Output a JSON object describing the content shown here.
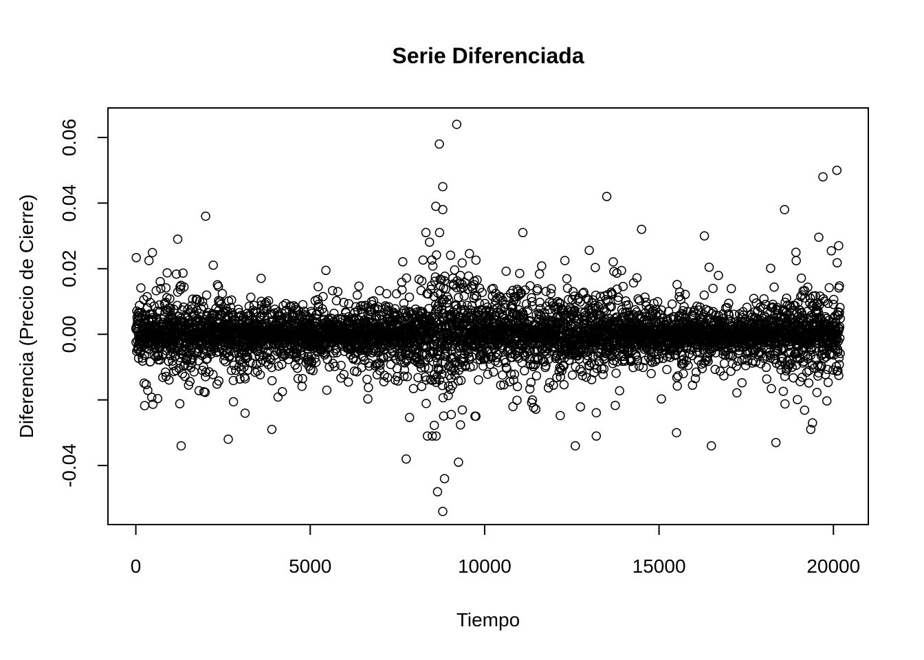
{
  "chart_data": {
    "type": "scatter",
    "title": "Serie Diferenciada",
    "xlabel": "Tiempo",
    "ylabel": "Diferencia (Precio de Cierre)",
    "xlim": [
      -800,
      21000
    ],
    "ylim": [
      -0.058,
      0.069
    ],
    "x_ticks": [
      0,
      5000,
      10000,
      15000,
      20000
    ],
    "x_tick_labels": [
      "0",
      "5000",
      "10000",
      "15000",
      "20000"
    ],
    "y_ticks": [
      -0.04,
      -0.02,
      0.0,
      0.02,
      0.04,
      0.06
    ],
    "y_tick_labels": [
      "-0.04",
      "",
      "0.00",
      "0.02",
      "0.04",
      "0.06"
    ],
    "n_points_approx": 20200,
    "grid": false,
    "legend": "none",
    "marker": "open-circle",
    "color": "#000000",
    "volatility_envelope": [
      {
        "x": 0,
        "sd": 0.0065
      },
      {
        "x": 1000,
        "sd": 0.0062
      },
      {
        "x": 2000,
        "sd": 0.0052
      },
      {
        "x": 3000,
        "sd": 0.0049
      },
      {
        "x": 4000,
        "sd": 0.0046
      },
      {
        "x": 5000,
        "sd": 0.0042
      },
      {
        "x": 6000,
        "sd": 0.0037
      },
      {
        "x": 7000,
        "sd": 0.005
      },
      {
        "x": 8000,
        "sd": 0.0062
      },
      {
        "x": 8700,
        "sd": 0.0098
      },
      {
        "x": 9500,
        "sd": 0.007
      },
      {
        "x": 10000,
        "sd": 0.0058
      },
      {
        "x": 11000,
        "sd": 0.0063
      },
      {
        "x": 12000,
        "sd": 0.0058
      },
      {
        "x": 13000,
        "sd": 0.0066
      },
      {
        "x": 14000,
        "sd": 0.0048
      },
      {
        "x": 15000,
        "sd": 0.0043
      },
      {
        "x": 16000,
        "sd": 0.004
      },
      {
        "x": 17000,
        "sd": 0.0035
      },
      {
        "x": 18000,
        "sd": 0.0045
      },
      {
        "x": 19000,
        "sd": 0.0062
      },
      {
        "x": 20200,
        "sd": 0.0055
      }
    ],
    "outliers": [
      {
        "x": 9200,
        "y": 0.064
      },
      {
        "x": 8700,
        "y": 0.058
      },
      {
        "x": 8800,
        "y": 0.045
      },
      {
        "x": 8600,
        "y": 0.039
      },
      {
        "x": 8800,
        "y": 0.038
      },
      {
        "x": 13500,
        "y": 0.042
      },
      {
        "x": 20100,
        "y": 0.05
      },
      {
        "x": 19700,
        "y": 0.048
      },
      {
        "x": 18600,
        "y": 0.038
      },
      {
        "x": 2000,
        "y": 0.036
      },
      {
        "x": 14500,
        "y": 0.032
      },
      {
        "x": 16300,
        "y": 0.03
      },
      {
        "x": 20150,
        "y": 0.027
      },
      {
        "x": 1200,
        "y": 0.029
      },
      {
        "x": 8800,
        "y": -0.054
      },
      {
        "x": 8650,
        "y": -0.048
      },
      {
        "x": 8850,
        "y": -0.044
      },
      {
        "x": 9250,
        "y": -0.039
      },
      {
        "x": 7750,
        "y": -0.038
      },
      {
        "x": 1300,
        "y": -0.034
      },
      {
        "x": 2650,
        "y": -0.032
      },
      {
        "x": 12600,
        "y": -0.034
      },
      {
        "x": 16500,
        "y": -0.034
      },
      {
        "x": 18350,
        "y": -0.033
      },
      {
        "x": 3900,
        "y": -0.029
      },
      {
        "x": 15500,
        "y": -0.03
      },
      {
        "x": 19350,
        "y": -0.029
      },
      {
        "x": 19400,
        "y": -0.027
      },
      {
        "x": 9750,
        "y": -0.025
      },
      {
        "x": 13200,
        "y": -0.031
      }
    ]
  }
}
